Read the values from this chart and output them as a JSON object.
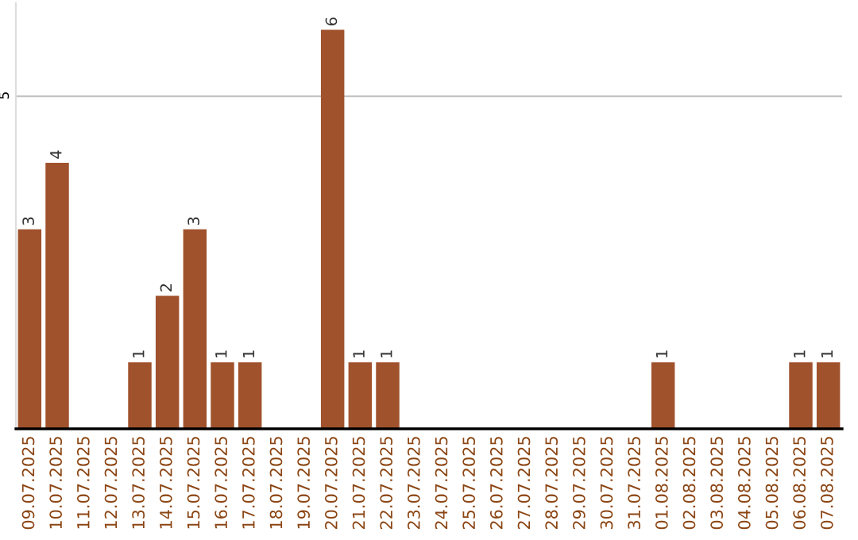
{
  "chart_data": {
    "type": "bar",
    "categories": [
      "09.07.2025",
      "10.07.2025",
      "11.07.2025",
      "12.07.2025",
      "13.07.2025",
      "14.07.2025",
      "15.07.2025",
      "16.07.2025",
      "17.07.2025",
      "18.07.2025",
      "19.07.2025",
      "20.07.2025",
      "21.07.2025",
      "22.07.2025",
      "23.07.2025",
      "24.07.2025",
      "25.07.2025",
      "26.07.2025",
      "27.07.2025",
      "28.07.2025",
      "29.07.2025",
      "30.07.2025",
      "31.07.2025",
      "01.08.2025",
      "02.08.2025",
      "03.08.2025",
      "04.08.2025",
      "05.08.2025",
      "06.08.2025",
      "07.08.2025"
    ],
    "values": [
      3,
      4,
      0,
      0,
      1,
      2,
      3,
      1,
      1,
      0,
      0,
      6,
      1,
      1,
      0,
      0,
      0,
      0,
      0,
      0,
      0,
      0,
      0,
      1,
      0,
      0,
      0,
      0,
      1,
      1
    ],
    "value_labels": [
      "3",
      "4",
      null,
      null,
      "1",
      "2",
      "3",
      "1",
      "1",
      null,
      null,
      "6",
      "1",
      "1",
      null,
      null,
      null,
      null,
      null,
      null,
      null,
      null,
      null,
      "1",
      null,
      null,
      null,
      null,
      "1",
      "1"
    ],
    "color": "#a0522d",
    "ylim": [
      0,
      6.4
    ],
    "yticks": [
      5
    ],
    "grid": "y"
  }
}
